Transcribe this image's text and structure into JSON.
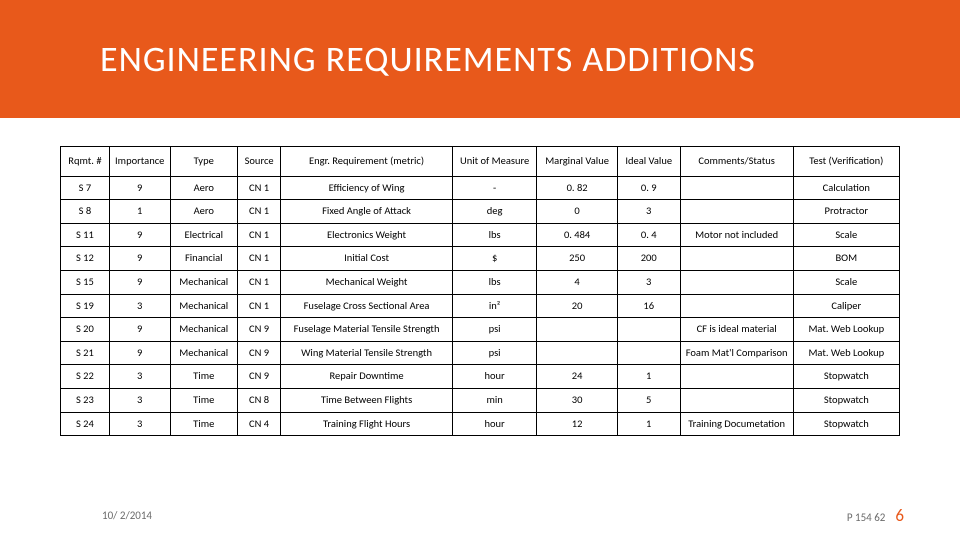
{
  "title": "ENGINEERING REQUIREMENTS ADDITIONS",
  "columns": [
    "Rqmt. #",
    "Importance",
    "Type",
    "Source",
    "Engr. Requirement (metric)",
    "Unit of Measure",
    "Marginal Value",
    "Ideal Value",
    "Comments/Status",
    "Test (Verification)"
  ],
  "rows": [
    [
      "S 7",
      "9",
      "Aero",
      "CN 1",
      "Efficiency of Wing",
      "-",
      "0. 82",
      "0. 9",
      "",
      "Calculation"
    ],
    [
      "S 8",
      "1",
      "Aero",
      "CN 1",
      "Fixed Angle of Attack",
      "deg",
      "0",
      "3",
      "",
      "Protractor"
    ],
    [
      "S 11",
      "9",
      "Electrical",
      "CN 1",
      "Electronics Weight",
      "lbs",
      "0. 484",
      "0. 4",
      "Motor not included",
      "Scale"
    ],
    [
      "S 12",
      "9",
      "Financial",
      "CN 1",
      "Initial Cost",
      "$",
      "250",
      "200",
      "",
      "BOM"
    ],
    [
      "S 15",
      "9",
      "Mechanical",
      "CN 1",
      "Mechanical Weight",
      "lbs",
      "4",
      "3",
      "",
      "Scale"
    ],
    [
      "S 19",
      "3",
      "Mechanical",
      "CN 1",
      "Fuselage Cross Sectional Area",
      "in²",
      "20",
      "16",
      "",
      "Caliper"
    ],
    [
      "S 20",
      "9",
      "Mechanical",
      "CN 9",
      "Fuselage Material Tensile Strength",
      "psi",
      "",
      "",
      "CF is ideal material",
      "Mat. Web Lookup"
    ],
    [
      "S 21",
      "9",
      "Mechanical",
      "CN 9",
      "Wing Material Tensile Strength",
      "psi",
      "",
      "",
      "Foam Mat'l Comparison",
      "Mat. Web Lookup"
    ],
    [
      "S 22",
      "3",
      "Time",
      "CN 9",
      "Repair Downtime",
      "hour",
      "24",
      "1",
      "",
      "Stopwatch"
    ],
    [
      "S 23",
      "3",
      "Time",
      "CN 8",
      "Time Between Flights",
      "min",
      "30",
      "5",
      "",
      "Stopwatch"
    ],
    [
      "S 24",
      "3",
      "Time",
      "CN 4",
      "Training Flight Hours",
      "hour",
      "12",
      "1",
      "Training Documetation",
      "Stopwatch"
    ]
  ],
  "footer": {
    "date": "10/ 2/2014",
    "code": "P 154 62",
    "page": "6"
  },
  "colors": {
    "accent": "#e8591b",
    "border": "#000000",
    "footer_text": "#6b6b6b",
    "background": "#ffffff"
  }
}
